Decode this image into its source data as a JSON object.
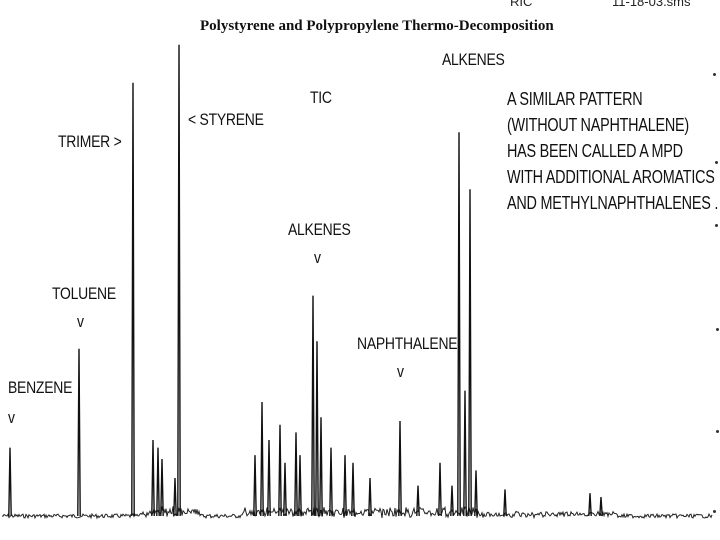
{
  "chart_data": {
    "type": "line",
    "title": "Polystyrene and Polypropylene Thermo-Decomposition",
    "xlabel": "",
    "ylabel": "",
    "grid": false,
    "legend": "none",
    "header": {
      "ric": "RIC",
      "file": "11-18-03.sms",
      "tic": "TIC"
    },
    "annotations": [
      {
        "text": "BENZENE",
        "arrow": "v"
      },
      {
        "text": "TOLUENE",
        "arrow": "v"
      },
      {
        "text": "TRIMER >",
        "arrow": ""
      },
      {
        "text": "< STYRENE",
        "arrow": ""
      },
      {
        "text": "ALKENES",
        "arrow": "v"
      },
      {
        "text": "NAPHTHALENE",
        "arrow": "v"
      },
      {
        "text": "ALKENES",
        "arrow": ""
      }
    ],
    "note_lines": [
      "A SIMILAR PATTERN",
      "(WITHOUT NAPHTHALENE)",
      "HAS BEEN CALLED A MPD",
      "WITH ADDITIONAL AROMATICS",
      "AND METHYLNAPHTHALENES ."
    ],
    "peaks": [
      {
        "x": 10,
        "h": 0.18
      },
      {
        "x": 79,
        "h": 0.44
      },
      {
        "x": 133,
        "h": 1.14
      },
      {
        "x": 153,
        "h": 0.2
      },
      {
        "x": 158,
        "h": 0.18
      },
      {
        "x": 162,
        "h": 0.15
      },
      {
        "x": 179,
        "h": 1.24
      },
      {
        "x": 175,
        "h": 0.1
      },
      {
        "x": 255,
        "h": 0.16
      },
      {
        "x": 262,
        "h": 0.3
      },
      {
        "x": 269,
        "h": 0.2
      },
      {
        "x": 280,
        "h": 0.24
      },
      {
        "x": 285,
        "h": 0.14
      },
      {
        "x": 296,
        "h": 0.22
      },
      {
        "x": 300,
        "h": 0.16
      },
      {
        "x": 313,
        "h": 0.58
      },
      {
        "x": 317,
        "h": 0.46
      },
      {
        "x": 321,
        "h": 0.26
      },
      {
        "x": 331,
        "h": 0.18
      },
      {
        "x": 345,
        "h": 0.16
      },
      {
        "x": 353,
        "h": 0.14
      },
      {
        "x": 370,
        "h": 0.1
      },
      {
        "x": 400,
        "h": 0.25
      },
      {
        "x": 418,
        "h": 0.08
      },
      {
        "x": 440,
        "h": 0.14
      },
      {
        "x": 452,
        "h": 0.08
      },
      {
        "x": 459,
        "h": 1.01
      },
      {
        "x": 465,
        "h": 0.33
      },
      {
        "x": 470,
        "h": 0.86
      },
      {
        "x": 476,
        "h": 0.12
      },
      {
        "x": 505,
        "h": 0.07
      },
      {
        "x": 590,
        "h": 0.06
      },
      {
        "x": 601,
        "h": 0.05
      }
    ]
  }
}
